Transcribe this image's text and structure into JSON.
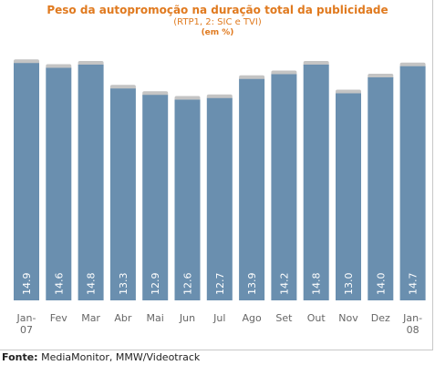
{
  "source": {
    "label": "Fonte:",
    "text": "MediaMonitor, MMW/Videotrack"
  },
  "colors": {
    "bar": "#6a8faf",
    "bar_cap": "#c4c4c4",
    "title": "#e07a1f",
    "value_label": "#ffffff",
    "axis_label": "#666666"
  },
  "chart_data": {
    "type": "bar",
    "title": "Peso da autopromoção na duração total da publicidade",
    "subtitle": "(RTP1, 2: SIC e TVI)",
    "unit": "(em %)",
    "categories": [
      [
        "Jan-",
        "07"
      ],
      [
        "Fev"
      ],
      [
        "Mar"
      ],
      [
        "Abr"
      ],
      [
        "Mai"
      ],
      [
        "Jun"
      ],
      [
        "Jul"
      ],
      [
        "Ago"
      ],
      [
        "Set"
      ],
      [
        "Out"
      ],
      [
        "Nov"
      ],
      [
        "Dez"
      ],
      [
        "Jan-",
        "08"
      ]
    ],
    "values": [
      14.9,
      14.6,
      14.8,
      13.3,
      12.9,
      12.6,
      12.7,
      13.9,
      14.2,
      14.8,
      13.0,
      14.0,
      14.7
    ],
    "value_labels": [
      "14.9",
      "14.6",
      "14.8",
      "13.3",
      "12.9",
      "12.6",
      "12.7",
      "13.9",
      "14.2",
      "14.8",
      "13.0",
      "14.0",
      "14.7"
    ],
    "ylim": [
      0,
      15.5
    ],
    "grid": false,
    "legend": "none"
  }
}
